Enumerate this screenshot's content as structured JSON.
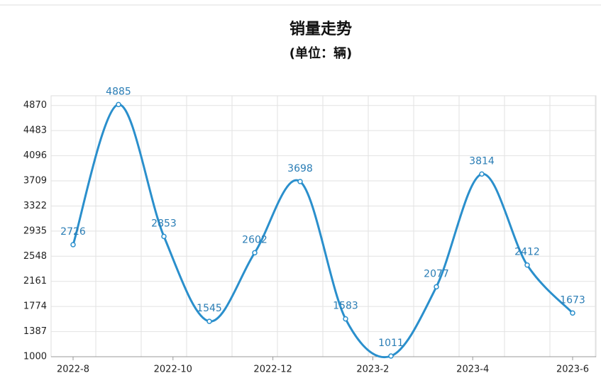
{
  "chart_data": {
    "type": "line",
    "title": "销量走势",
    "subtitle": "(单位：辆)",
    "values": [
      2726,
      4885,
      2853,
      1545,
      2602,
      3698,
      1583,
      1011,
      2077,
      3814,
      2412,
      1673
    ],
    "xticks": [
      "2022-8",
      "2022-10",
      "2022-12",
      "2023-2",
      "2023-4",
      "2023-6"
    ],
    "color": "#2a8fcc",
    "ylim": [
      1000,
      5020
    ],
    "yticks": [
      1000,
      1387,
      1774,
      2161,
      2548,
      2935,
      3322,
      3709,
      4096,
      4483,
      4870
    ],
    "grid": true
  }
}
